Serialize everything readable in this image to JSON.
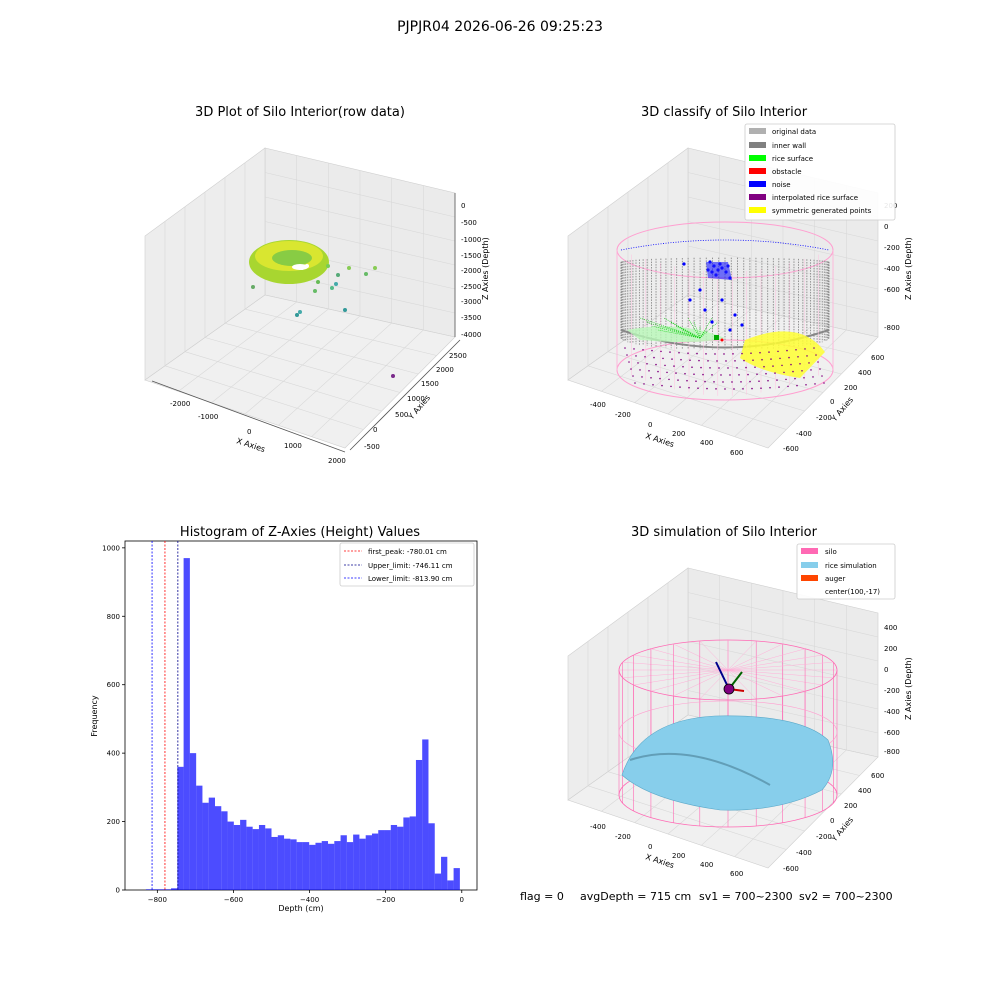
{
  "figure_title": "PJPJR04 2026-06-26 09:25:23",
  "footer": {
    "flag": "flag = 0",
    "avg_depth": "avgDepth = 715 cm",
    "sv1": "sv1 = 700~2300",
    "sv2": "sv2 = 700~2300"
  },
  "colors": {
    "original": "#b0b0b0",
    "inner_wall": "#808080",
    "rice_surface": "#00ff00",
    "obstacle": "#ff0000",
    "noise": "#0000ff",
    "interp": "#800080",
    "symmetric": "#ffff00",
    "silo": "#ff69b4",
    "rice_sim": "#87ceeb",
    "auger": "#ff4500",
    "hist_bar": "#0000ff"
  },
  "chart_data": [
    {
      "type": "scatter",
      "title": "3D Plot of Silo Interior(row data)",
      "xlabel": "X Axies",
      "ylabel": "Y Axies",
      "zlabel": "Z Axies (Depth)",
      "x_ticks": [
        "-2000",
        "-1000",
        "0",
        "1000",
        "2000"
      ],
      "y_ticks": [
        "-500",
        "0",
        "500",
        "1000",
        "1500",
        "2000",
        "2500"
      ],
      "z_ticks": [
        "0",
        "-500",
        "-1000",
        "-1500",
        "-2000",
        "-2500",
        "-3000",
        "-3500",
        "-4000"
      ]
    },
    {
      "type": "scatter",
      "title": "3D classify of Silo Interior",
      "xlabel": "X Axies",
      "ylabel": "Y Axies",
      "zlabel": "Z Axies (Depth)",
      "x_ticks": [
        "-400",
        "-200",
        "0",
        "200",
        "400",
        "600"
      ],
      "y_ticks": [
        "-600",
        "-400",
        "-200",
        "0",
        "200",
        "400",
        "600"
      ],
      "z_ticks": [
        "200",
        "0",
        "-200",
        "-400",
        "-600",
        "-800"
      ],
      "legend": [
        "original data",
        "inner wall",
        "rice surface",
        "obstacle",
        "noise",
        "interpolated rice surface",
        "symmetric generated points"
      ]
    },
    {
      "type": "bar",
      "title": "Histogram of Z-Axies (Height) Values",
      "xlabel": "Depth (cm)",
      "ylabel": "Frequency",
      "xlim": [
        -885,
        40
      ],
      "ylim": [
        0,
        1020
      ],
      "x_ticks": [
        -800,
        -600,
        -400,
        -200,
        0
      ],
      "y_ticks": [
        0,
        200,
        400,
        600,
        800,
        1000
      ],
      "bin_start": -830,
      "bin_width": 16.5,
      "values": [
        2,
        2,
        2,
        2,
        5,
        360,
        970,
        400,
        305,
        255,
        270,
        245,
        230,
        200,
        190,
        205,
        185,
        178,
        190,
        180,
        155,
        160,
        150,
        148,
        140,
        140,
        132,
        138,
        143,
        135,
        143,
        160,
        140,
        162,
        150,
        160,
        165,
        175,
        175,
        190,
        185,
        212,
        215,
        380,
        440,
        195,
        48,
        97,
        28,
        64
      ],
      "lines": [
        {
          "label": "first_peak: -780.01 cm",
          "value": -780.01,
          "color": "#ff0000"
        },
        {
          "label": "Upper_limit: -746.11 cm",
          "value": -746.11,
          "color": "#00008b"
        },
        {
          "label": "Lower_limit: -813.90 cm",
          "value": -813.9,
          "color": "#0000ff"
        }
      ]
    },
    {
      "type": "scatter",
      "title": "3D simulation of Silo Interior",
      "xlabel": "X Axies",
      "ylabel": "Y Axies",
      "zlabel": "Z Axies (Depth)",
      "x_ticks": [
        "-400",
        "-200",
        "0",
        "200",
        "400",
        "600"
      ],
      "y_ticks": [
        "-600",
        "-400",
        "-200",
        "0",
        "200",
        "400",
        "600"
      ],
      "z_ticks": [
        "400",
        "200",
        "0",
        "-200",
        "-400",
        "-600",
        "-800"
      ],
      "legend": [
        "silo",
        "rice simulation",
        "auger",
        "center(100,-17)"
      ]
    }
  ]
}
